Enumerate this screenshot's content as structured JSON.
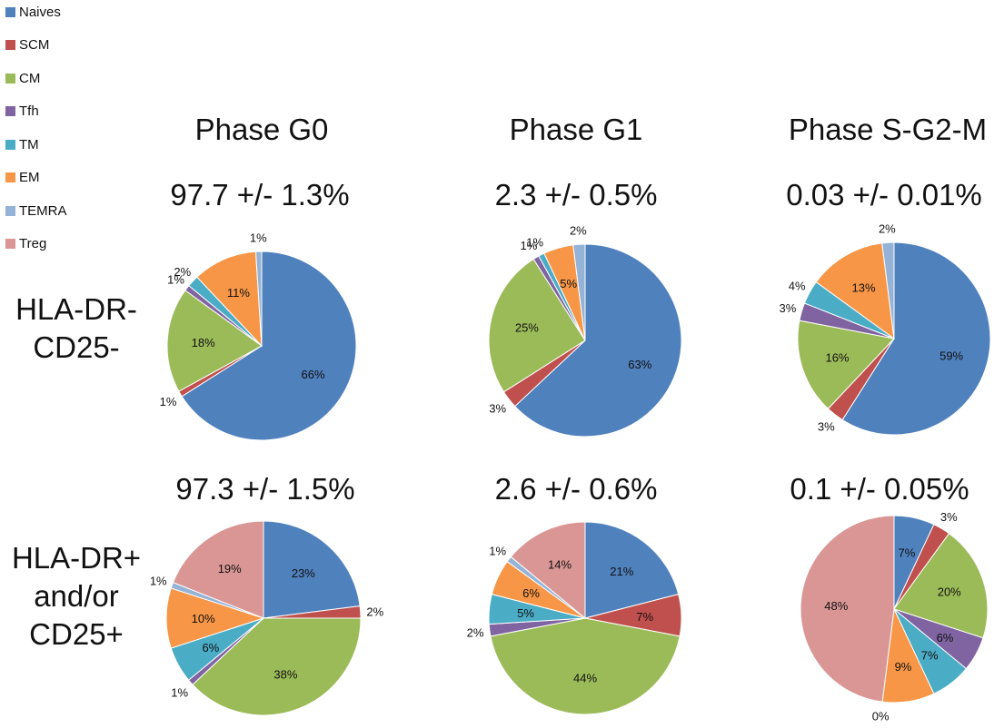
{
  "legend": [
    {
      "label": "Naives",
      "color": "#4F81BD"
    },
    {
      "label": "SCM",
      "color": "#C0504D"
    },
    {
      "label": "CM",
      "color": "#9BBB59"
    },
    {
      "label": "Tfh",
      "color": "#8064A2"
    },
    {
      "label": "TM",
      "color": "#4BACC6"
    },
    {
      "label": "EM",
      "color": "#F79646"
    },
    {
      "label": "TEMRA",
      "color": "#95B3D7"
    },
    {
      "label": "Treg",
      "color": "#D99694"
    }
  ],
  "columns": [
    "Phase G0",
    "Phase G1",
    "Phase S-G2-M"
  ],
  "rows": [
    {
      "line1": "HLA-DR-",
      "line2": "CD25-",
      "line3": ""
    },
    {
      "line1": "HLA-DR+",
      "line2": "and/or",
      "line3": "CD25+"
    }
  ],
  "chart_data": [
    {
      "type": "pie",
      "row": 0,
      "col": 0,
      "header": "97.7 +/- 1.3%",
      "categories": [
        "Naives",
        "SCM",
        "CM",
        "Tfh",
        "TM",
        "EM",
        "TEMRA",
        "Treg"
      ],
      "values": [
        66,
        1,
        18,
        1,
        2,
        11,
        1,
        0
      ],
      "labels": [
        "66%",
        "1%",
        "18%",
        "1%",
        "2%",
        "11%",
        "1%",
        ""
      ]
    },
    {
      "type": "pie",
      "row": 0,
      "col": 1,
      "header": "2.3 +/- 0.5%",
      "categories": [
        "Naives",
        "SCM",
        "CM",
        "Tfh",
        "TM",
        "EM",
        "TEMRA",
        "Treg"
      ],
      "values": [
        63,
        3,
        25,
        1,
        1,
        5,
        2,
        0
      ],
      "labels": [
        "63%",
        "3%",
        "25%",
        "1%",
        "1%",
        "5%",
        "2%",
        ""
      ]
    },
    {
      "type": "pie",
      "row": 0,
      "col": 2,
      "header": "0.03 +/- 0.01%",
      "categories": [
        "Naives",
        "SCM",
        "CM",
        "Tfh",
        "TM",
        "EM",
        "TEMRA",
        "Treg"
      ],
      "values": [
        59,
        3,
        16,
        3,
        4,
        13,
        2,
        0
      ],
      "labels": [
        "59%",
        "3%",
        "16%",
        "3%",
        "4%",
        "13%",
        "2%",
        ""
      ]
    },
    {
      "type": "pie",
      "row": 1,
      "col": 0,
      "header": "97.3 +/- 1.5%",
      "categories": [
        "Naives",
        "SCM",
        "CM",
        "Tfh",
        "TM",
        "EM",
        "TEMRA",
        "Treg"
      ],
      "values": [
        23,
        2,
        38,
        1,
        6,
        10,
        1,
        19
      ],
      "labels": [
        "23%",
        "2%",
        "38%",
        "1%",
        "6%",
        "10%",
        "1%",
        "19%"
      ]
    },
    {
      "type": "pie",
      "row": 1,
      "col": 1,
      "header": "2.6 +/- 0.6%",
      "categories": [
        "Naives",
        "SCM",
        "CM",
        "Tfh",
        "TM",
        "EM",
        "TEMRA",
        "Treg"
      ],
      "values": [
        21,
        7,
        44,
        2,
        5,
        6,
        1,
        14
      ],
      "labels": [
        "21%",
        "7%",
        "44%",
        "2%",
        "5%",
        "6%",
        "1%",
        "14%"
      ]
    },
    {
      "type": "pie",
      "row": 1,
      "col": 2,
      "header": "0.1 +/- 0.05%",
      "categories": [
        "Naives",
        "SCM",
        "CM",
        "Tfh",
        "TM",
        "EM",
        "TEMRA",
        "Treg"
      ],
      "values": [
        7,
        3,
        20,
        6,
        7,
        9,
        0,
        48
      ],
      "labels": [
        "7%",
        "3%",
        "20%",
        "6%",
        "7%",
        "9%",
        "0%",
        "48%"
      ]
    }
  ]
}
